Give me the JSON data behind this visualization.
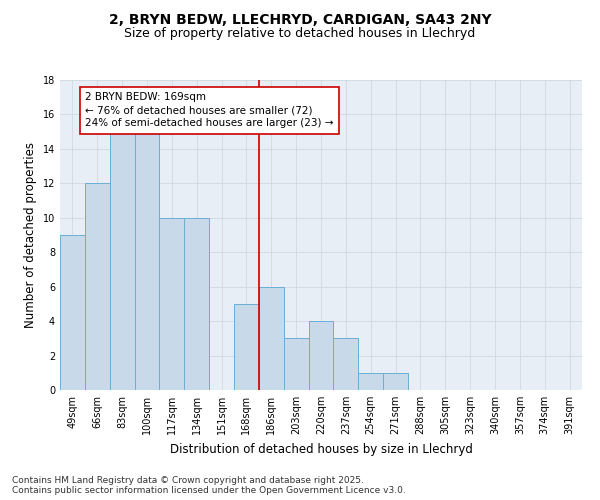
{
  "title1": "2, BRYN BEDW, LLECHRYD, CARDIGAN, SA43 2NY",
  "title2": "Size of property relative to detached houses in Llechryd",
  "xlabel": "Distribution of detached houses by size in Llechryd",
  "ylabel": "Number of detached properties",
  "categories": [
    "49sqm",
    "66sqm",
    "83sqm",
    "100sqm",
    "117sqm",
    "134sqm",
    "151sqm",
    "168sqm",
    "186sqm",
    "203sqm",
    "220sqm",
    "237sqm",
    "254sqm",
    "271sqm",
    "288sqm",
    "305sqm",
    "323sqm",
    "340sqm",
    "357sqm",
    "374sqm",
    "391sqm"
  ],
  "values": [
    9,
    12,
    15,
    15,
    10,
    10,
    0,
    5,
    6,
    3,
    4,
    3,
    1,
    1,
    0,
    0,
    0,
    0,
    0,
    0,
    0
  ],
  "bar_color": "#c8daea",
  "bar_edge_color": "#6baed6",
  "vline_x_idx": 7,
  "vline_color": "#cc0000",
  "annotation_text": "2 BRYN BEDW: 169sqm\n← 76% of detached houses are smaller (72)\n24% of semi-detached houses are larger (23) →",
  "annotation_box_color": "#ffffff",
  "annotation_box_edge": "#cc0000",
  "ylim": [
    0,
    18
  ],
  "yticks": [
    0,
    2,
    4,
    6,
    8,
    10,
    12,
    14,
    16,
    18
  ],
  "grid_color": "#d0d8e0",
  "bg_color": "#e8eef5",
  "footer": "Contains HM Land Registry data © Crown copyright and database right 2025.\nContains public sector information licensed under the Open Government Licence v3.0.",
  "title1_fontsize": 10,
  "title2_fontsize": 9,
  "xlabel_fontsize": 8.5,
  "ylabel_fontsize": 8.5,
  "tick_fontsize": 7,
  "annotation_fontsize": 7.5,
  "footer_fontsize": 6.5
}
